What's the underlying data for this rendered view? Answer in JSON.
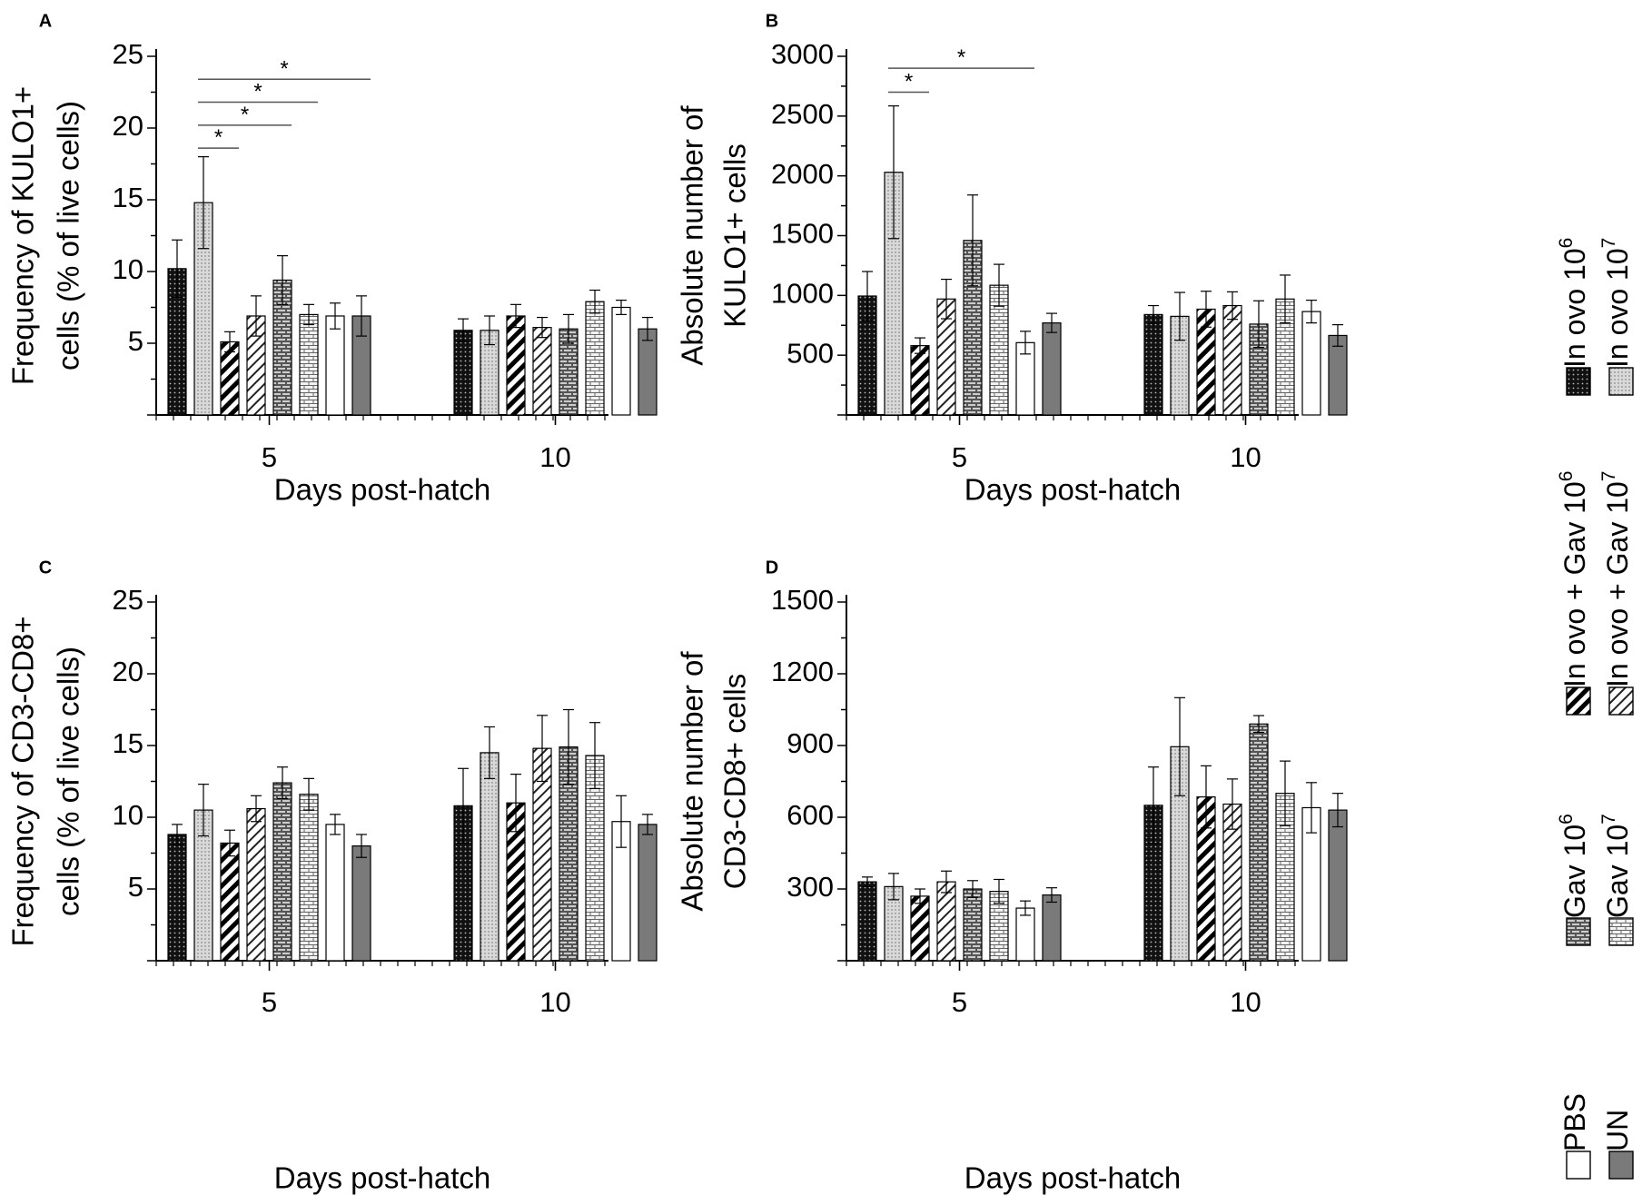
{
  "groups": [
    {
      "key": "io6",
      "label": "In ovo 10",
      "sup": "6",
      "fill": "dots-dark"
    },
    {
      "key": "io7",
      "label": "In ovo 10",
      "sup": "7",
      "fill": "dots-light"
    },
    {
      "key": "iog6",
      "label": "In ovo + Gav 10",
      "sup": "6",
      "fill": "diag-thick"
    },
    {
      "key": "iog7",
      "label": "In ovo + Gav 10",
      "sup": "7",
      "fill": "diag-thin"
    },
    {
      "key": "gav6",
      "label": "Gav 10",
      "sup": "6",
      "fill": "brick-dark"
    },
    {
      "key": "gav7",
      "label": "Gav 10",
      "sup": "7",
      "fill": "brick-light"
    },
    {
      "key": "pbs",
      "label": "PBS",
      "sup": "",
      "fill": "white"
    },
    {
      "key": "un",
      "label": "UN",
      "sup": "",
      "fill": "gray"
    }
  ],
  "chart_data": [
    {
      "panel": "A",
      "type": "bar",
      "ylabel_line1": "Frequency of KULO1+",
      "ylabel_line2": "cells (% of live cells)",
      "xlabel": "Days post-hatch",
      "categories": [
        "5",
        "10"
      ],
      "ylim": [
        0,
        25
      ],
      "yticks": [
        "5",
        "10",
        "15",
        "20",
        "25"
      ],
      "series": [
        {
          "name": "In ovo 10^6",
          "values": [
            10.2,
            5.9
          ],
          "errors": [
            2.0,
            0.8
          ]
        },
        {
          "name": "In ovo 10^7",
          "values": [
            14.8,
            5.9
          ],
          "errors": [
            3.2,
            1.0
          ]
        },
        {
          "name": "In ovo + Gav 10^6",
          "values": [
            5.1,
            6.9
          ],
          "errors": [
            0.7,
            0.8
          ]
        },
        {
          "name": "In ovo + Gav 10^7",
          "values": [
            6.9,
            6.1
          ],
          "errors": [
            1.4,
            0.7
          ]
        },
        {
          "name": "Gav 10^6",
          "values": [
            9.4,
            6.0
          ],
          "errors": [
            1.7,
            1.0
          ]
        },
        {
          "name": "Gav 10^7",
          "values": [
            7.0,
            7.9
          ],
          "errors": [
            0.7,
            0.8
          ]
        },
        {
          "name": "PBS",
          "values": [
            6.9,
            7.5
          ],
          "errors": [
            0.9,
            0.5
          ]
        },
        {
          "name": "UN",
          "values": [
            6.9,
            6.0
          ],
          "errors": [
            1.4,
            0.8
          ]
        }
      ],
      "significance": [
        {
          "day": "5",
          "from_bar": 1,
          "to_bar": 2,
          "y": 18.6,
          "label": "*"
        },
        {
          "day": "5",
          "from_bar": 1,
          "to_bar": 4,
          "y": 20.2,
          "label": "*"
        },
        {
          "day": "5",
          "from_bar": 1,
          "to_bar": 5,
          "y": 21.8,
          "label": "*"
        },
        {
          "day": "5",
          "from_bar": 1,
          "to_bar": 7,
          "y": 23.4,
          "label": "*"
        }
      ]
    },
    {
      "panel": "B",
      "type": "bar",
      "ylabel_line1": "Absolute number of",
      "ylabel_line2": "KULO1+ cells",
      "xlabel": "Days post-hatch",
      "categories": [
        "5",
        "10"
      ],
      "ylim": [
        0,
        3000
      ],
      "yticks": [
        "500",
        "1000",
        "1500",
        "2000",
        "2500",
        "3000"
      ],
      "series": [
        {
          "name": "In ovo 10^6",
          "values": [
            995,
            840
          ],
          "errors": [
            205,
            75
          ]
        },
        {
          "name": "In ovo 10^7",
          "values": [
            2030,
            825
          ],
          "errors": [
            555,
            200
          ]
        },
        {
          "name": "In ovo + Gav 10^6",
          "values": [
            580,
            885
          ],
          "errors": [
            65,
            150
          ]
        },
        {
          "name": "In ovo + Gav 10^7",
          "values": [
            970,
            915
          ],
          "errors": [
            165,
            115
          ]
        },
        {
          "name": "Gav 10^6",
          "values": [
            1460,
            760
          ],
          "errors": [
            380,
            195
          ]
        },
        {
          "name": "Gav 10^7",
          "values": [
            1085,
            970
          ],
          "errors": [
            175,
            200
          ]
        },
        {
          "name": "PBS",
          "values": [
            605,
            865
          ],
          "errors": [
            95,
            95
          ]
        },
        {
          "name": "UN",
          "values": [
            770,
            665
          ],
          "errors": [
            80,
            90
          ]
        }
      ],
      "significance": [
        {
          "day": "5",
          "from_bar": 1,
          "to_bar": 2,
          "y": 2700,
          "label": "*"
        },
        {
          "day": "5",
          "from_bar": 1,
          "to_bar": 6,
          "y": 2900,
          "label": "*"
        }
      ]
    },
    {
      "panel": "C",
      "type": "bar",
      "ylabel_line1": "Frequency of CD3-CD8+",
      "ylabel_line2": "cells (% of live cells)",
      "xlabel": "Days post-hatch",
      "categories": [
        "5",
        "10"
      ],
      "ylim": [
        0,
        25
      ],
      "yticks": [
        "5",
        "10",
        "15",
        "20",
        "25"
      ],
      "series": [
        {
          "name": "In ovo 10^6",
          "values": [
            8.8,
            10.8
          ],
          "errors": [
            0.7,
            2.6
          ]
        },
        {
          "name": "In ovo 10^7",
          "values": [
            10.5,
            14.5
          ],
          "errors": [
            1.8,
            1.8
          ]
        },
        {
          "name": "In ovo + Gav 10^6",
          "values": [
            8.2,
            11.0
          ],
          "errors": [
            0.9,
            2.0
          ]
        },
        {
          "name": "In ovo + Gav 10^7",
          "values": [
            10.6,
            14.8
          ],
          "errors": [
            0.9,
            2.3
          ]
        },
        {
          "name": "Gav 10^6",
          "values": [
            12.4,
            14.9
          ],
          "errors": [
            1.1,
            2.6
          ]
        },
        {
          "name": "Gav 10^7",
          "values": [
            11.6,
            14.3
          ],
          "errors": [
            1.1,
            2.3
          ]
        },
        {
          "name": "PBS",
          "values": [
            9.5,
            9.7
          ],
          "errors": [
            0.7,
            1.8
          ]
        },
        {
          "name": "UN",
          "values": [
            8.0,
            9.5
          ],
          "errors": [
            0.8,
            0.7
          ]
        }
      ],
      "significance": []
    },
    {
      "panel": "D",
      "type": "bar",
      "ylabel_line1": "Absolute number of",
      "ylabel_line2": "CD3-CD8+ cells",
      "xlabel": "Days post-hatch",
      "categories": [
        "5",
        "10"
      ],
      "ylim": [
        0,
        1500
      ],
      "yticks": [
        "300",
        "600",
        "900",
        "1200",
        "1500"
      ],
      "series": [
        {
          "name": "In ovo 10^6",
          "values": [
            330,
            650
          ],
          "errors": [
            20,
            160
          ]
        },
        {
          "name": "In ovo 10^7",
          "values": [
            310,
            895
          ],
          "errors": [
            55,
            205
          ]
        },
        {
          "name": "In ovo + Gav 10^6",
          "values": [
            270,
            685
          ],
          "errors": [
            30,
            130
          ]
        },
        {
          "name": "In ovo + Gav 10^7",
          "values": [
            330,
            655
          ],
          "errors": [
            45,
            105
          ]
        },
        {
          "name": "Gav 10^6",
          "values": [
            300,
            990
          ],
          "errors": [
            35,
            35
          ]
        },
        {
          "name": "Gav 10^7",
          "values": [
            290,
            700
          ],
          "errors": [
            50,
            135
          ]
        },
        {
          "name": "PBS",
          "values": [
            220,
            640
          ],
          "errors": [
            30,
            105
          ]
        },
        {
          "name": "UN",
          "values": [
            275,
            630
          ],
          "errors": [
            30,
            70
          ]
        }
      ],
      "significance": []
    }
  ]
}
